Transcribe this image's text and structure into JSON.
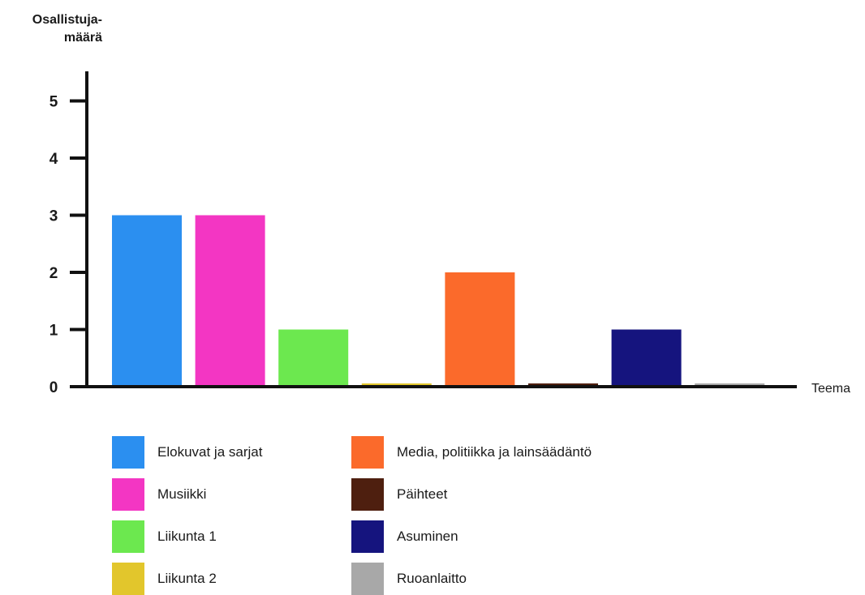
{
  "chart_data": {
    "type": "bar",
    "ylabel": "Osallistuja- määrä",
    "ylabel_lines": [
      "Osallistuja-",
      "määrä"
    ],
    "xlabel": "Teema",
    "ylim": [
      0,
      5
    ],
    "yticks": [
      "0",
      "1",
      "2",
      "3",
      "4",
      "5"
    ],
    "categories": [
      "Elokuvat ja sarjat",
      "Musiikki",
      "Liikunta 1",
      "Liikunta 2",
      "Media, politiikka ja lainsäädäntö",
      "Päihteet",
      "Asuminen",
      "Ruoanlaitto"
    ],
    "values": [
      3,
      3,
      1,
      0,
      2,
      0,
      1,
      0
    ],
    "colors": [
      "#2b8ff0",
      "#f336c3",
      "#6ce84f",
      "#e2c62c",
      "#fb6a2b",
      "#4e1f0f",
      "#15147e",
      "#a8a8a8"
    ],
    "legend_position": "bottom",
    "grid": false
  }
}
